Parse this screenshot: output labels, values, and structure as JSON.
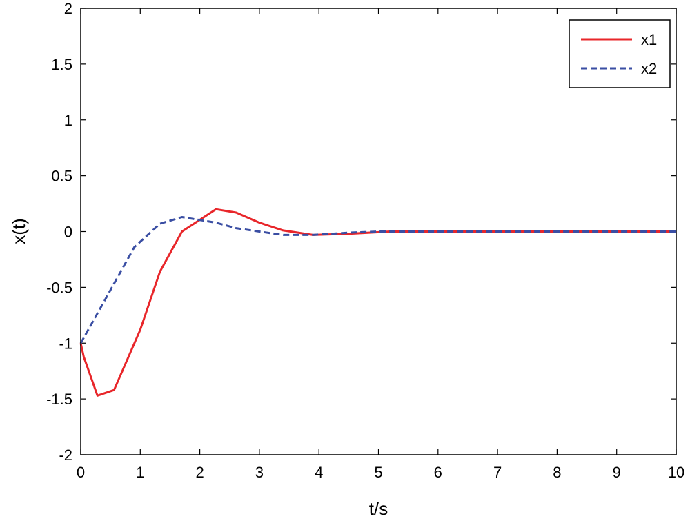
{
  "chart_data": {
    "type": "line",
    "title": "",
    "xlabel": "t/s",
    "ylabel": "x(t)",
    "xlim": [
      0,
      10
    ],
    "ylim": [
      -2,
      2
    ],
    "xticks": [
      0,
      1,
      2,
      3,
      4,
      5,
      6,
      7,
      8,
      9,
      10
    ],
    "yticks": [
      -2,
      -1.5,
      -1,
      -0.5,
      0,
      0.5,
      1,
      1.5,
      2
    ],
    "xtick_labels": [
      "0",
      "1",
      "2",
      "3",
      "4",
      "5",
      "6",
      "7",
      "8",
      "9",
      "10"
    ],
    "ytick_labels": [
      "-2",
      "-1.5",
      "-1",
      "-0.5",
      "0",
      "0.5",
      "1",
      "1.5",
      "2"
    ],
    "grid": false,
    "legend_position": "top-right",
    "series": [
      {
        "name": "x1",
        "color": "#e8262a",
        "style": "solid",
        "x": [
          0,
          0.05,
          0.28,
          0.56,
          1.0,
          1.33,
          1.7,
          2.27,
          2.61,
          3.0,
          3.4,
          3.9,
          4.5,
          5.2,
          6,
          7,
          8,
          9,
          10
        ],
        "y": [
          -1.0,
          -1.12,
          -1.47,
          -1.42,
          -0.88,
          -0.36,
          0.0,
          0.2,
          0.17,
          0.08,
          0.01,
          -0.03,
          -0.02,
          0.0,
          0.0,
          0.0,
          0.0,
          0.0,
          0.0
        ]
      },
      {
        "name": "x2",
        "color": "#3a4ea3",
        "style": "dashed",
        "x": [
          0,
          0.4,
          0.9,
          1.33,
          1.7,
          2.27,
          2.61,
          3.0,
          3.4,
          3.9,
          4.5,
          5.0,
          6,
          7,
          8,
          9,
          10
        ],
        "y": [
          -1.0,
          -0.62,
          -0.14,
          0.07,
          0.13,
          0.08,
          0.03,
          0.0,
          -0.03,
          -0.03,
          -0.01,
          0.0,
          0.0,
          0.0,
          0.0,
          0.0,
          0.0
        ]
      }
    ]
  }
}
